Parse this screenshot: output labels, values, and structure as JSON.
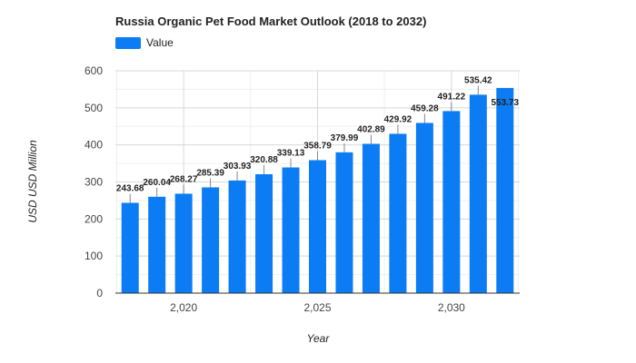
{
  "chart_data": {
    "type": "bar",
    "title": "Russia Organic Pet Food Market Outlook (2018 to 2032)",
    "xlabel": "Year",
    "ylabel": "USD USD Million",
    "legend": {
      "position": "top-left",
      "entries": [
        "Value"
      ]
    },
    "grid": true,
    "ylim": [
      0,
      600
    ],
    "yticks": [
      0,
      100,
      200,
      300,
      400,
      500,
      600
    ],
    "xticks": [
      2020,
      2025,
      2030
    ],
    "xtick_labels": [
      "2,020",
      "2,025",
      "2,030"
    ],
    "xlim": [
      2017.45,
      2032.55
    ],
    "color": "#0b7cf3",
    "series": [
      {
        "name": "Value",
        "x": [
          2018,
          2019,
          2020,
          2021,
          2022,
          2023,
          2024,
          2025,
          2026,
          2027,
          2028,
          2029,
          2030,
          2031,
          2032
        ],
        "values": [
          243.68,
          260.04,
          268.27,
          285.39,
          303.93,
          320.88,
          339.13,
          358.79,
          379.99,
          402.89,
          429.92,
          459.28,
          491.22,
          535.42,
          553.73
        ],
        "labels": [
          "243.68",
          "260.04",
          "268.27",
          "285.39",
          "303.93",
          "320.88",
          "339.13",
          "358.79",
          "379.99",
          "402.89",
          "429.92",
          "459.28",
          "491.22",
          "535.42",
          "553.73"
        ]
      }
    ]
  }
}
